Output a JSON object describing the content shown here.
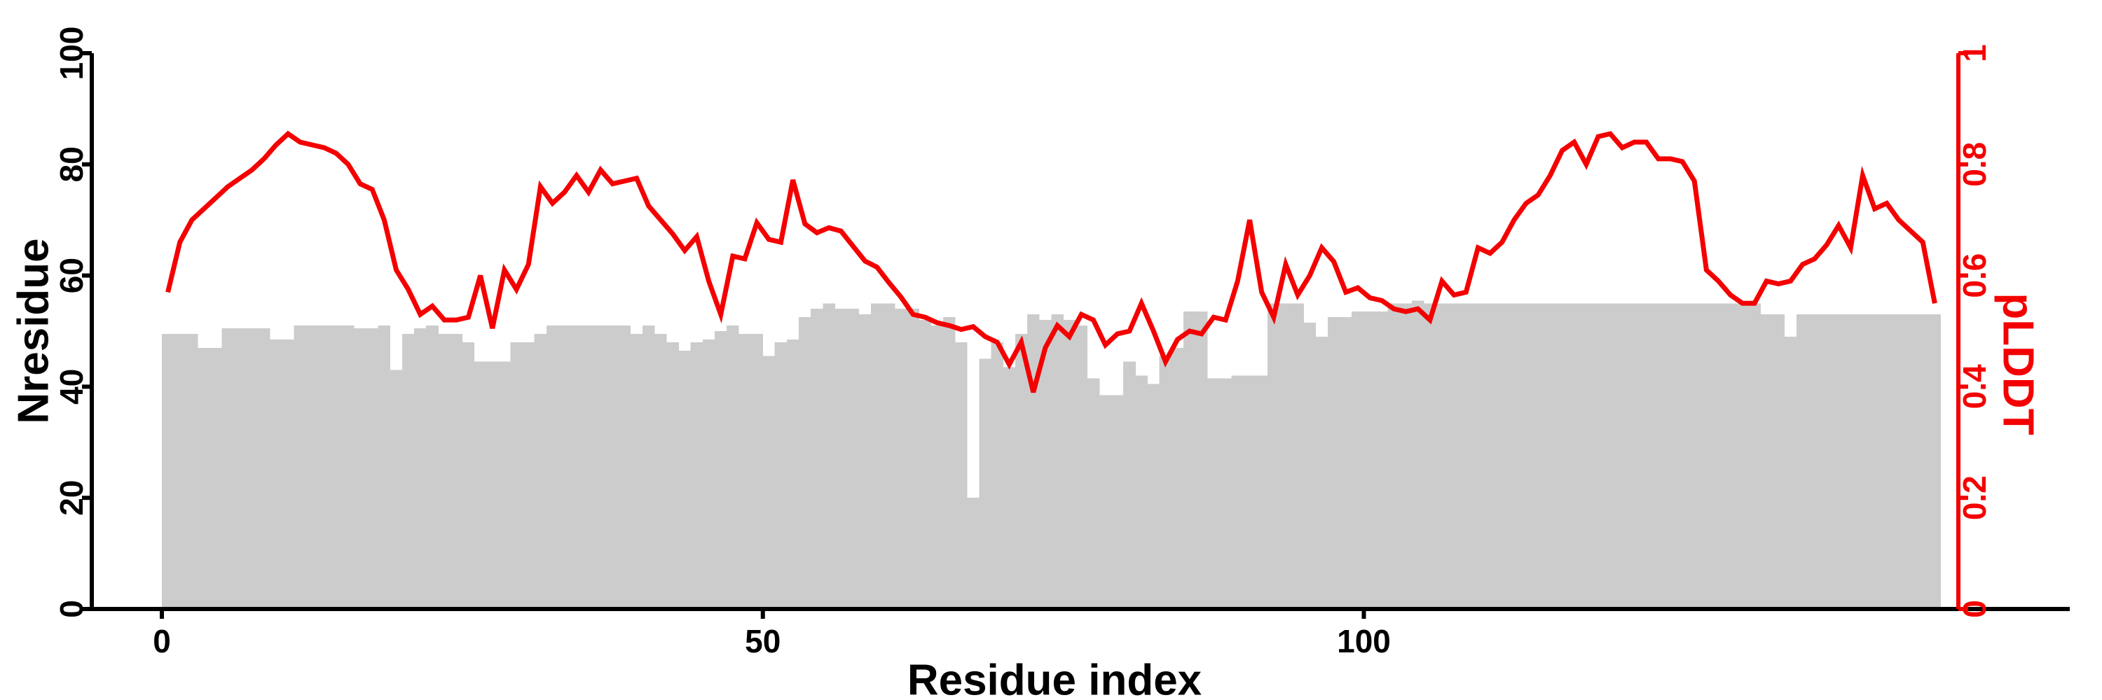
{
  "chart_data": {
    "type": "bar+line-dual-axis",
    "title": "",
    "xlabel": "Residue index",
    "ylabel_left": "Nresidue",
    "ylabel_right": "pLDDT",
    "n_residues": 148,
    "xlim": [
      0,
      150
    ],
    "ylim_left": [
      0,
      100
    ],
    "ylim_right": [
      0,
      1
    ],
    "grid": false,
    "legend": "none",
    "x_ticks": {
      "values": [
        0,
        50,
        100
      ],
      "labels": [
        "0",
        "50",
        "100"
      ]
    },
    "y_left_ticks": {
      "values": [
        0,
        20,
        40,
        60,
        80,
        100
      ],
      "labels": [
        "0",
        "20",
        "40",
        "60",
        "80",
        "100"
      ]
    },
    "y_right_ticks": {
      "values": [
        0,
        0.2,
        0.4,
        0.6,
        0.8,
        1
      ],
      "labels": [
        "0",
        "0.2",
        "0.4",
        "0.6",
        "0.8",
        "1"
      ]
    },
    "colors": {
      "bars": "#cccccc",
      "line": "#f40000",
      "left_axis": "#000000",
      "right_axis": "#f40000",
      "background": "#ffffff"
    },
    "series": [
      {
        "name": "Nresidue",
        "type": "bar",
        "axis": "left",
        "color": "#cccccc",
        "values": [
          49.5,
          49.5,
          49.5,
          47,
          47,
          50.5,
          50.5,
          50.5,
          50.5,
          48.5,
          48.5,
          51,
          51,
          51,
          51,
          51,
          50.5,
          50.5,
          51,
          43,
          49.5,
          50.5,
          51,
          49.5,
          49.5,
          48,
          44.5,
          44.5,
          44.5,
          48,
          48,
          49.5,
          51,
          51,
          51,
          51,
          51,
          51,
          51,
          49.5,
          51,
          49.5,
          48,
          46.5,
          48,
          48.5,
          50,
          51,
          49.5,
          49.5,
          45.5,
          48,
          48.5,
          52.5,
          54,
          55,
          54,
          54,
          53,
          55,
          55,
          54,
          54,
          52,
          51,
          52.5,
          48,
          20,
          45,
          48,
          43.5,
          49.5,
          53,
          52,
          53,
          52,
          51,
          41.5,
          38.5,
          38.5,
          44.5,
          42,
          40.5,
          45.5,
          47,
          53.5,
          53.5,
          41.5,
          41.5,
          42,
          42,
          42,
          55,
          55,
          55,
          51.5,
          49,
          52.5,
          52.5,
          53.5,
          53.5,
          53.5,
          55,
          55,
          55.5,
          55,
          55,
          55,
          55,
          55,
          55,
          55,
          55,
          55,
          55,
          55,
          55,
          55,
          55,
          55,
          55,
          55,
          55,
          55,
          55,
          55,
          55,
          55,
          55,
          55,
          55,
          55,
          55,
          53,
          53,
          49,
          53,
          53,
          53,
          53,
          53,
          53,
          53,
          53,
          53,
          53,
          53,
          53
        ]
      },
      {
        "name": "pLDDT",
        "type": "line",
        "axis": "right",
        "color": "#f40000",
        "values": [
          0.57,
          0.66,
          0.7,
          0.72,
          0.74,
          0.76,
          0.775,
          0.79,
          0.81,
          0.835,
          0.855,
          0.84,
          0.835,
          0.83,
          0.82,
          0.8,
          0.765,
          0.755,
          0.7,
          0.61,
          0.575,
          0.53,
          0.545,
          0.52,
          0.52,
          0.525,
          0.6,
          0.505,
          0.61,
          0.575,
          0.62,
          0.76,
          0.73,
          0.75,
          0.78,
          0.75,
          0.79,
          0.765,
          0.77,
          0.775,
          0.725,
          0.7,
          0.675,
          0.645,
          0.67,
          0.59,
          0.53,
          0.635,
          0.63,
          0.695,
          0.665,
          0.66,
          0.772,
          0.693,
          0.677,
          0.686,
          0.68,
          0.653,
          0.626,
          0.615,
          0.587,
          0.561,
          0.53,
          0.525,
          0.515,
          0.51,
          0.503,
          0.508,
          0.49,
          0.48,
          0.44,
          0.48,
          0.39,
          0.47,
          0.51,
          0.49,
          0.53,
          0.52,
          0.475,
          0.495,
          0.5,
          0.55,
          0.5,
          0.445,
          0.485,
          0.5,
          0.495,
          0.525,
          0.52,
          0.59,
          0.7,
          0.57,
          0.525,
          0.62,
          0.565,
          0.6,
          0.65,
          0.625,
          0.57,
          0.578,
          0.56,
          0.555,
          0.54,
          0.535,
          0.54,
          0.52,
          0.59,
          0.565,
          0.57,
          0.65,
          0.64,
          0.66,
          0.7,
          0.73,
          0.745,
          0.78,
          0.825,
          0.84,
          0.8,
          0.85,
          0.855,
          0.83,
          0.84,
          0.84,
          0.81,
          0.81,
          0.805,
          0.77,
          0.61,
          0.59,
          0.565,
          0.55,
          0.55,
          0.59,
          0.585,
          0.59,
          0.62,
          0.63,
          0.655,
          0.69,
          0.65,
          0.78,
          0.72,
          0.73,
          0.7,
          0.68,
          0.66,
          0.55
        ]
      }
    ]
  }
}
